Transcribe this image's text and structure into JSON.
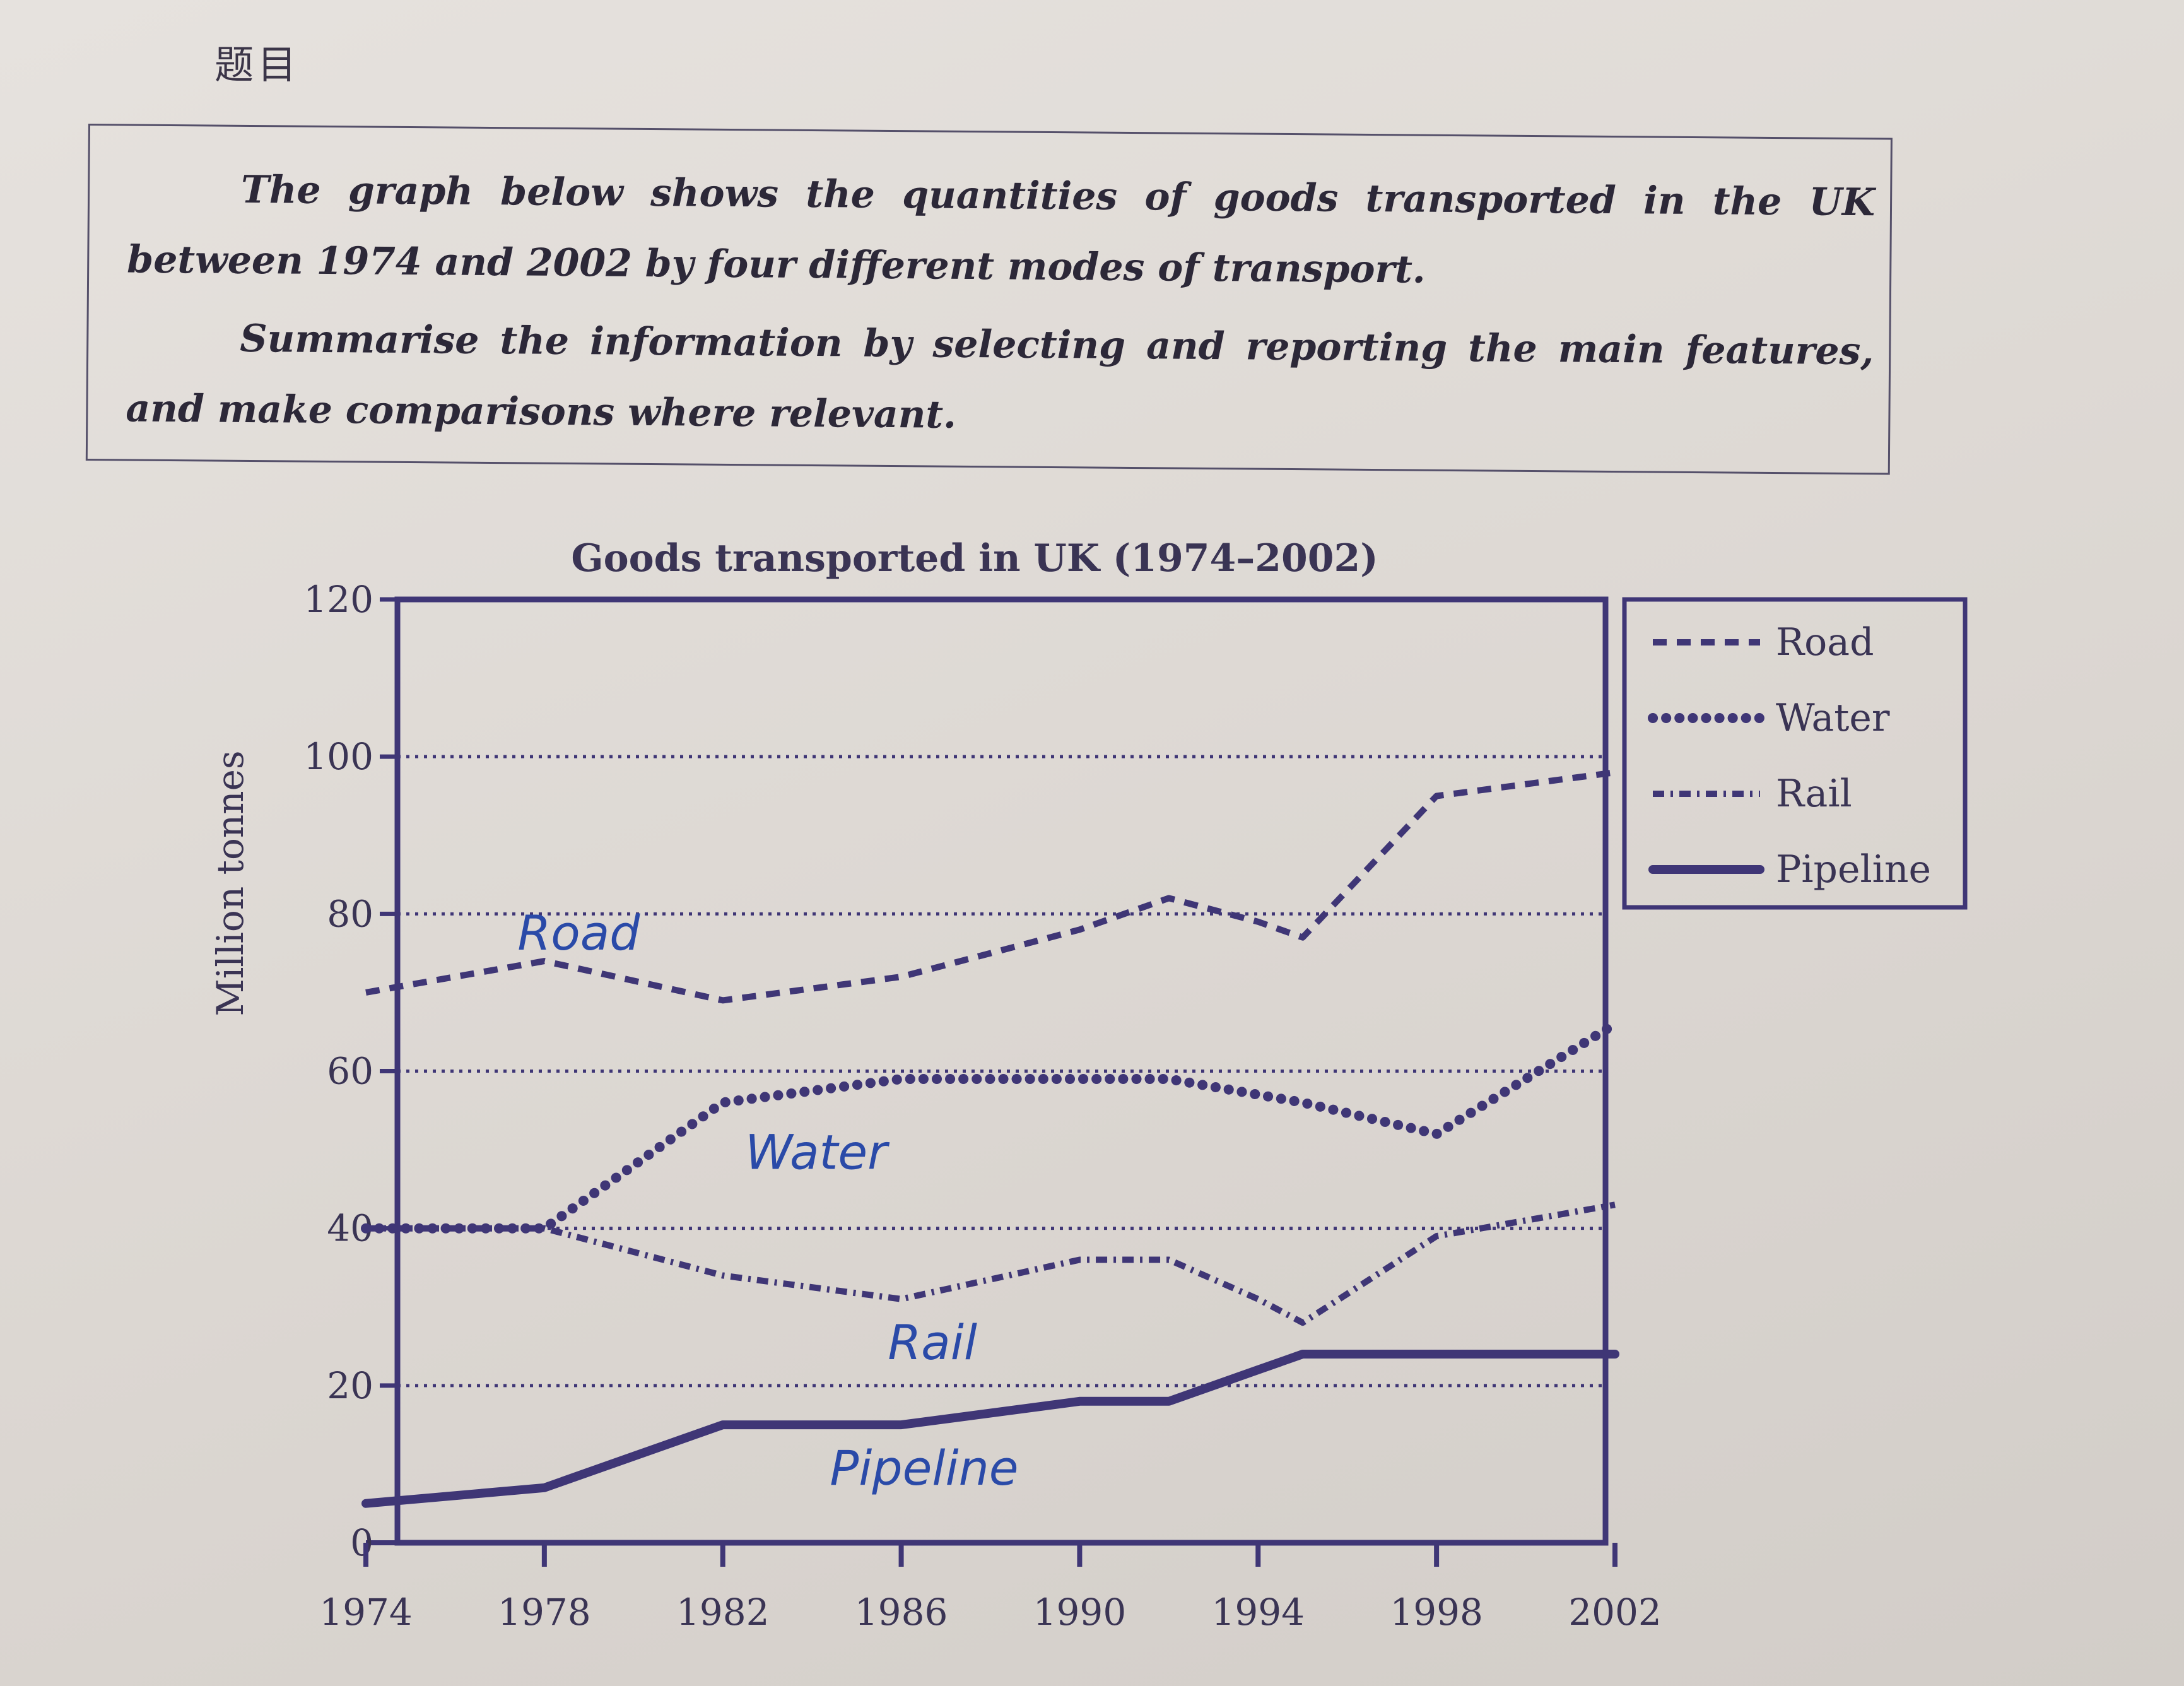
{
  "header": "题目",
  "prompt": {
    "paragraph1": "The graph below shows the quantities of goods transported in the UK between 1974 and 2002 by four different modes of transport.",
    "paragraph2": "Summarise the information by selecting and reporting the main features, and make comparisons where relevant."
  },
  "chart_data": {
    "type": "line",
    "title": "Goods transported in UK (1974–2002)",
    "xlabel": "",
    "ylabel": "Million tonnes",
    "x": [
      1974,
      1978,
      1982,
      1986,
      1990,
      1992,
      1994,
      1995,
      1998,
      2002
    ],
    "xticks": [
      1974,
      1978,
      1982,
      1986,
      1990,
      1994,
      1998,
      2002
    ],
    "yticks": [
      0,
      20,
      40,
      60,
      80,
      100,
      120
    ],
    "xlim": [
      1974,
      2002
    ],
    "ylim": [
      0,
      120
    ],
    "grid": "dotted horizontal lines at 20, 40, 60, 80, 100",
    "legend_position": "right",
    "series": [
      {
        "name": "Road",
        "style": "dashed",
        "values": [
          70,
          74,
          69,
          72,
          78,
          82,
          79,
          77,
          95,
          98
        ]
      },
      {
        "name": "Water",
        "style": "dotted",
        "values": [
          40,
          40,
          56,
          59,
          59,
          59,
          57,
          56,
          52,
          66
        ]
      },
      {
        "name": "Rail",
        "style": "dash-dot",
        "values": [
          40,
          40,
          34,
          31,
          36,
          36,
          31,
          28,
          39,
          43
        ]
      },
      {
        "name": "Pipeline",
        "style": "solid",
        "values": [
          5,
          7,
          15,
          15,
          18,
          18,
          22,
          24,
          24,
          24
        ]
      }
    ],
    "annotations": [
      "Road",
      "Water",
      "Rail",
      "Pipeline"
    ],
    "colors": {
      "lines": "#3f3676",
      "handwriting": "#2a4aa8"
    }
  }
}
